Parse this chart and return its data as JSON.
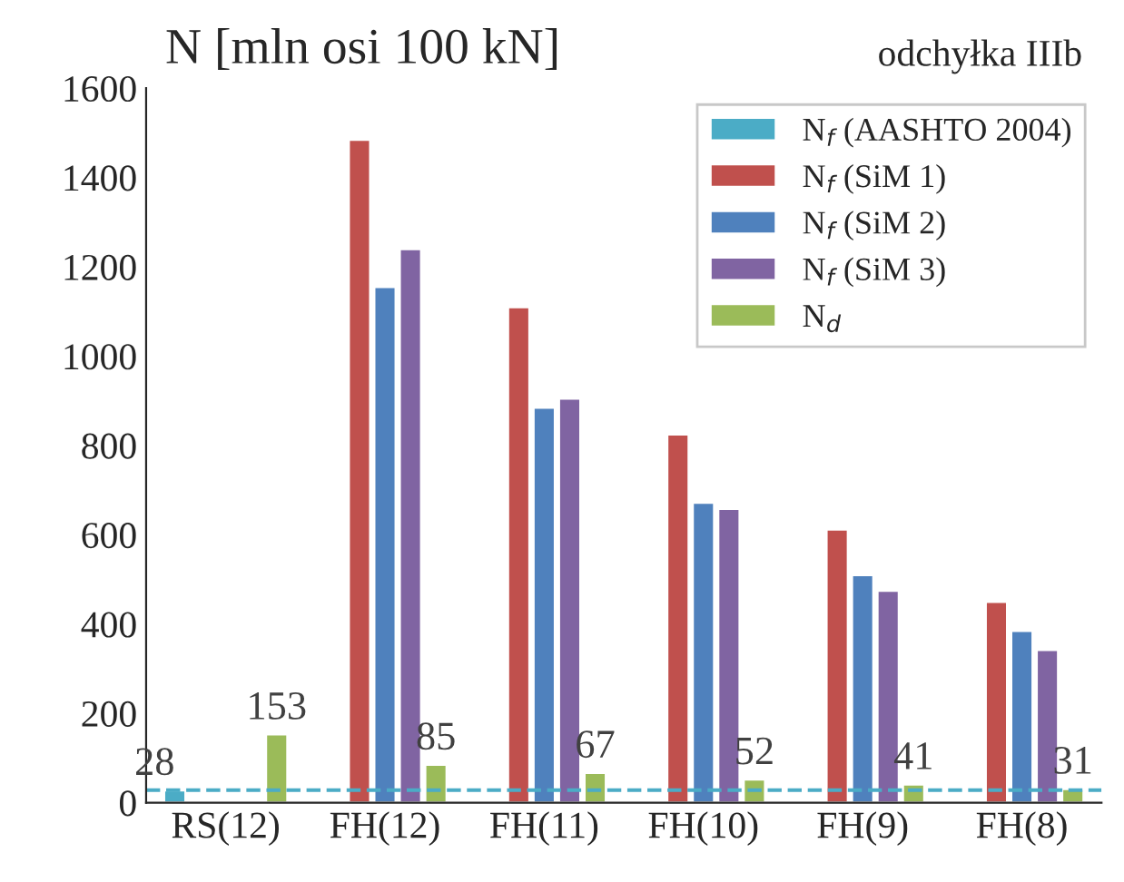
{
  "chart_data": {
    "type": "bar",
    "ylabel": "N [mln osi 100 kN]",
    "annotations": [
      "odchyłka IIIb"
    ],
    "categories": [
      "RS(12)",
      "FH(12)",
      "FH(11)",
      "FH(10)",
      "FH(9)",
      "FH(8)"
    ],
    "series": [
      {
        "name": "N$_{f}$ (AASHTO 2004)",
        "color": "#4bacc6",
        "values": [
          28,
          null,
          null,
          null,
          null,
          null
        ],
        "value_labels": [
          "28",
          null,
          null,
          null,
          null,
          null
        ]
      },
      {
        "name": "N$_{f}$ (SiM 1)",
        "color": "#c0504d",
        "values": [
          null,
          1485,
          1110,
          825,
          612,
          450
        ]
      },
      {
        "name": "N$_{f}$ (SiM 2)",
        "color": "#4f81bd",
        "values": [
          null,
          1155,
          885,
          672,
          510,
          385
        ]
      },
      {
        "name": "N$_{f}$ (SiM 3)",
        "color": "#8064a2",
        "values": [
          null,
          1240,
          905,
          658,
          475,
          342
        ]
      },
      {
        "name": "N$_{d}$",
        "color": "#9bbb59",
        "values": [
          153,
          85,
          67,
          52,
          41,
          31
        ],
        "value_labels": [
          "153",
          "85",
          "67",
          "52",
          "41",
          "31"
        ]
      }
    ],
    "ylim": [
      0,
      1600
    ],
    "yticks": [
      0,
      200,
      400,
      600,
      800,
      1000,
      1200,
      1400,
      1600
    ],
    "ref_lines": [
      {
        "axis": "y",
        "value": 28,
        "color": "#4bacc6",
        "line_style": "dashed"
      }
    ],
    "grid": false,
    "legend": "top right"
  }
}
